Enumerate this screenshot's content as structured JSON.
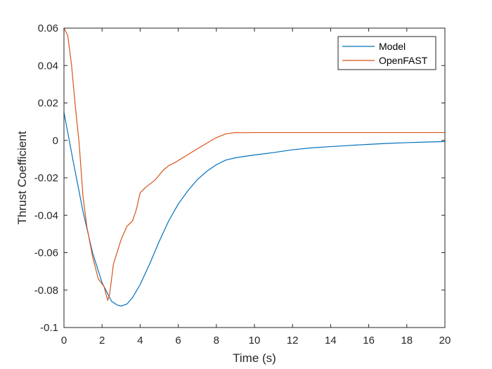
{
  "chart_data": {
    "type": "line",
    "title": "",
    "xlabel": "Time (s)",
    "ylabel": "Thrust Coefficient",
    "xlim": [
      0,
      20
    ],
    "ylim": [
      -0.1,
      0.06
    ],
    "xticks": [
      0,
      2,
      4,
      6,
      8,
      10,
      12,
      14,
      16,
      18,
      20
    ],
    "xtick_labels": [
      "0",
      "2",
      "4",
      "6",
      "8",
      "10",
      "12",
      "14",
      "16",
      "18",
      "20"
    ],
    "yticks": [
      -0.1,
      -0.08,
      -0.06,
      -0.04,
      -0.02,
      0,
      0.02,
      0.04,
      0.06
    ],
    "ytick_labels": [
      "-0.1",
      "-0.08",
      "-0.06",
      "-0.04",
      "-0.02",
      "0",
      "0.02",
      "0.04",
      "0.06"
    ],
    "grid": false,
    "legend_position": "top-right",
    "series": [
      {
        "name": "Model",
        "color": "#0072BD",
        "x": [
          0,
          0.5,
          1,
          1.5,
          2,
          2.5,
          2.8,
          3.0,
          3.3,
          3.6,
          4,
          4.5,
          5,
          5.5,
          6,
          6.5,
          7,
          7.5,
          8,
          8.5,
          9,
          9.5,
          10,
          11,
          12,
          13,
          14,
          15,
          16,
          17,
          18,
          19,
          20
        ],
        "values": [
          0.015,
          -0.012,
          -0.038,
          -0.06,
          -0.076,
          -0.086,
          -0.088,
          -0.0885,
          -0.0875,
          -0.084,
          -0.077,
          -0.066,
          -0.054,
          -0.043,
          -0.034,
          -0.027,
          -0.021,
          -0.0165,
          -0.013,
          -0.0105,
          -0.0093,
          -0.0085,
          -0.0078,
          -0.0065,
          -0.005,
          -0.004,
          -0.0033,
          -0.0027,
          -0.0021,
          -0.0016,
          -0.0012,
          -0.0009,
          -0.0006
        ]
      },
      {
        "name": "OpenFAST",
        "color": "#D95319",
        "x": [
          0,
          0.2,
          0.4,
          0.6,
          0.8,
          1.0,
          1.2,
          1.5,
          1.8,
          2.1,
          2.3,
          2.4,
          2.6,
          3.0,
          3.3,
          3.6,
          3.8,
          4.0,
          4.3,
          4.8,
          5.2,
          5.5,
          5.8,
          6.2,
          6.6,
          7.0,
          7.5,
          8.0,
          8.5,
          9.0,
          9.5,
          10,
          12,
          14,
          16,
          18,
          20
        ],
        "values": [
          0.06,
          0.056,
          0.04,
          0.018,
          -0.002,
          -0.03,
          -0.046,
          -0.062,
          -0.074,
          -0.078,
          -0.0855,
          -0.082,
          -0.066,
          -0.053,
          -0.046,
          -0.043,
          -0.037,
          -0.028,
          -0.025,
          -0.021,
          -0.016,
          -0.0135,
          -0.012,
          -0.0095,
          -0.007,
          -0.0045,
          -0.0015,
          0.0015,
          0.0035,
          0.0042,
          0.0041,
          0.0042,
          0.0042,
          0.0042,
          0.0042,
          0.0042,
          0.0042
        ]
      }
    ]
  }
}
